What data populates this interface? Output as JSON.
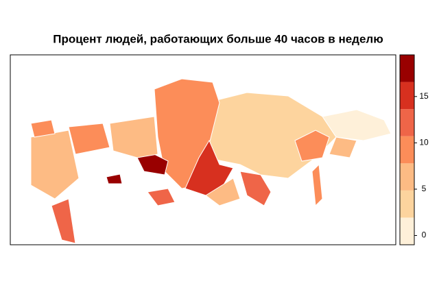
{
  "chart_data": {
    "type": "choropleth",
    "title": "Процент людей, работающих больше 40 часов в неделю",
    "values": [
      0,
      3,
      9,
      14,
      18,
      9,
      6,
      11,
      8,
      5,
      9,
      6,
      11,
      18,
      13,
      5,
      9
    ],
    "colors": [
      "#fef0d9",
      "#fdd49e",
      "#fdbb84",
      "#fc8d59",
      "#ef6548",
      "#d7301f",
      "#990000"
    ],
    "lim": [
      -1,
      19.5
    ],
    "ticks": [
      0,
      5,
      10,
      15
    ]
  }
}
